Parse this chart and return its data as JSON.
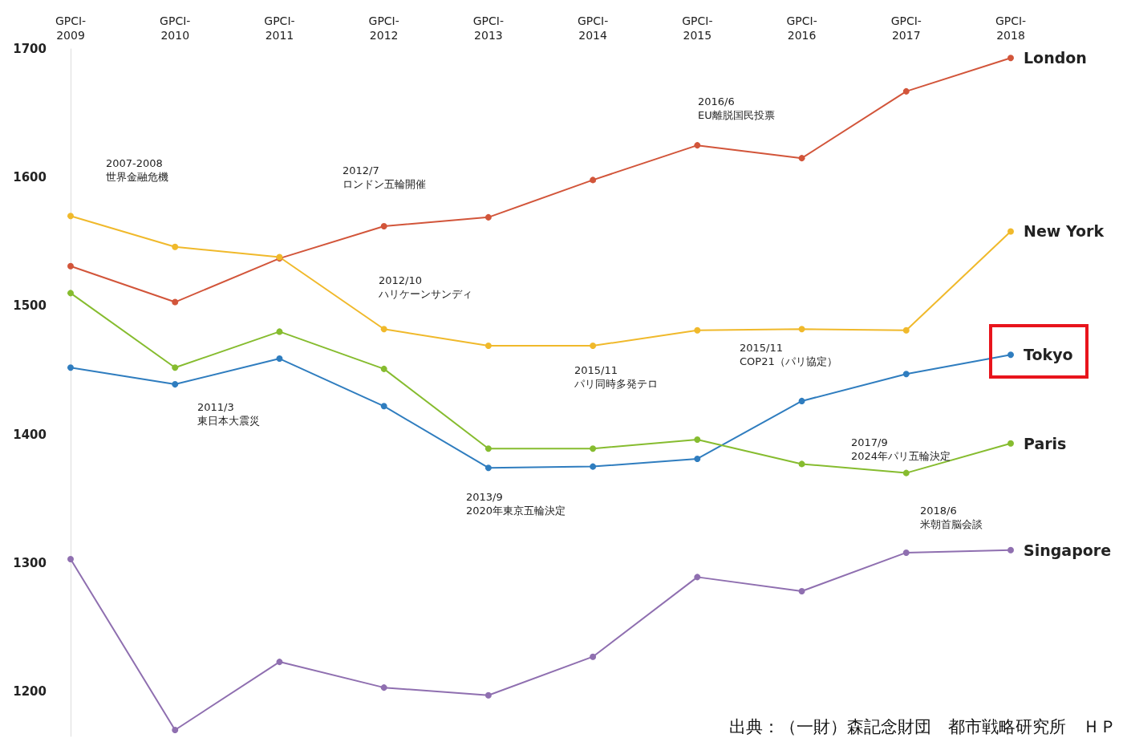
{
  "chart_data": {
    "type": "line",
    "categories": [
      "GPCI-\n2009",
      "GPCI-\n2010",
      "GPCI-\n2011",
      "GPCI-\n2012",
      "GPCI-\n2013",
      "GPCI-\n2014",
      "GPCI-\n2015",
      "GPCI-\n2016",
      "GPCI-\n2017",
      "GPCI-\n2018"
    ],
    "series": [
      {
        "name": "London",
        "color": "#d2553a",
        "values": [
          1531,
          1503,
          1537,
          1562,
          1569,
          1598,
          1625,
          1615,
          1667,
          1693
        ]
      },
      {
        "name": "New York",
        "color": "#f0b92b",
        "values": [
          1570,
          1546,
          1538,
          1482,
          1469,
          1469,
          1481,
          1482,
          1481,
          1558
        ]
      },
      {
        "name": "Tokyo",
        "color": "#2f7dbf",
        "values": [
          1452,
          1439,
          1459,
          1422,
          1374,
          1375,
          1381,
          1426,
          1447,
          1462
        ]
      },
      {
        "name": "Paris",
        "color": "#86bc2f",
        "values": [
          1510,
          1452,
          1480,
          1451,
          1389,
          1389,
          1396,
          1377,
          1370,
          1393
        ]
      },
      {
        "name": "Singapore",
        "color": "#8f6fb0",
        "values": [
          1303,
          1170,
          1223,
          1203,
          1197,
          1227,
          1289,
          1278,
          1308,
          1310
        ]
      }
    ],
    "ylim": [
      1165,
      1700
    ],
    "yticks": [
      {
        "value": 1200,
        "label": "1200"
      },
      {
        "value": 1300,
        "label": "1300"
      },
      {
        "value": 1400,
        "label": "1400"
      },
      {
        "value": 1500,
        "label": "1500"
      },
      {
        "value": 1600,
        "label": "1600"
      },
      {
        "value": 1700,
        "label": "1700"
      }
    ],
    "grid": false,
    "legend": false,
    "marker": "circle",
    "line_style": "solid",
    "annotations": [
      "2007-2008\n世界金融危機",
      "2012/7\nロンドン五輪開催",
      "2012/10\nハリケーンサンディ",
      "2011/3\n東日本大震災",
      "2013/9\n2020年東京五輪決定",
      "2015/11\nパリ同時多発テロ",
      "2015/11\nCOP21（パリ協定）",
      "2016/6\nEU離脱国民投票",
      "2017/9\n2024年パリ五輪決定",
      "2018/6\n米朝首脳会談",
      "出典：（一財）森記念財団　都市戦略研究所　ＨＰ"
    ]
  }
}
